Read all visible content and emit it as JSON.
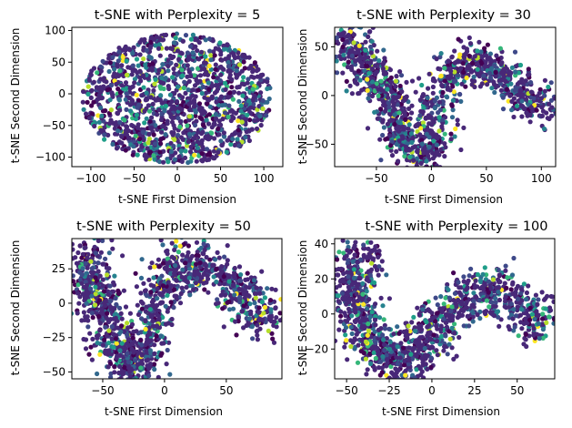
{
  "palette": [
    "#440154",
    "#482878",
    "#3e4989",
    "#31688e",
    "#26828e",
    "#1f9e89",
    "#35b779",
    "#6ece58",
    "#b5de2b",
    "#fde725"
  ],
  "chart_data": [
    {
      "type": "scatter",
      "title": "t-SNE with Perplexity = 5",
      "xlabel": "t-SNE First Dimension",
      "ylabel": "t-SNE Second Dimension",
      "xlim": [
        -122,
        122
      ],
      "ylim": [
        -115,
        105
      ],
      "xticks": [
        -100,
        -50,
        0,
        50,
        100
      ],
      "yticks": [
        -100,
        -50,
        0,
        50,
        100
      ],
      "point_cloud": {
        "shape": "disk",
        "x_range": [
          -110,
          110
        ],
        "y_range": [
          -110,
          95
        ],
        "count": 1400
      },
      "grid": false,
      "legend": "none"
    },
    {
      "type": "scatter",
      "title": "t-SNE with Perplexity = 30",
      "xlabel": "t-SNE First Dimension",
      "ylabel": "t-SNE Second Dimension",
      "xlim": [
        -88,
        113
      ],
      "ylim": [
        -73,
        70
      ],
      "xticks": [
        -50,
        0,
        50,
        100
      ],
      "yticks": [
        -50,
        0,
        50
      ],
      "point_cloud": {
        "shape": "curve",
        "spine": [
          [
            -77,
            60
          ],
          [
            -70,
            48
          ],
          [
            -65,
            35
          ],
          [
            -58,
            22
          ],
          [
            -45,
            12
          ],
          [
            -38,
            0
          ],
          [
            -32,
            -18
          ],
          [
            -28,
            -38
          ],
          [
            -22,
            -52
          ],
          [
            -12,
            -58
          ],
          [
            -5,
            -55
          ],
          [
            0,
            -35
          ],
          [
            5,
            -10
          ],
          [
            12,
            12
          ],
          [
            22,
            28
          ],
          [
            35,
            34
          ],
          [
            50,
            30
          ],
          [
            65,
            18
          ],
          [
            80,
            5
          ],
          [
            92,
            -8
          ],
          [
            105,
            -15
          ]
        ],
        "width": 10,
        "count": 1300
      },
      "grid": false,
      "legend": "none"
    },
    {
      "type": "scatter",
      "title": "t-SNE with Perplexity = 50",
      "xlabel": "t-SNE First Dimension",
      "ylabel": "t-SNE Second Dimension",
      "xlim": [
        -75,
        95
      ],
      "ylim": [
        -55,
        47
      ],
      "xticks": [
        -50,
        0,
        50
      ],
      "yticks": [
        -50,
        -25,
        0,
        25
      ],
      "point_cloud": {
        "shape": "curve",
        "spine": [
          [
            -60,
            38
          ],
          [
            -62,
            25
          ],
          [
            -58,
            12
          ],
          [
            -52,
            0
          ],
          [
            -48,
            -12
          ],
          [
            -42,
            -25
          ],
          [
            -35,
            -40
          ],
          [
            -28,
            -48
          ],
          [
            -20,
            -42
          ],
          [
            -15,
            -28
          ],
          [
            -10,
            -10
          ],
          [
            -4,
            10
          ],
          [
            5,
            22
          ],
          [
            15,
            28
          ],
          [
            28,
            28
          ],
          [
            42,
            22
          ],
          [
            55,
            12
          ],
          [
            65,
            5
          ],
          [
            75,
            -5
          ],
          [
            85,
            -15
          ]
        ],
        "width": 9,
        "count": 1400
      },
      "grid": false,
      "legend": "none"
    },
    {
      "type": "scatter",
      "title": "t-SNE with Perplexity = 100",
      "xlabel": "t-SNE First Dimension",
      "ylabel": "t-SNE Second Dimension",
      "xlim": [
        -57,
        72
      ],
      "ylim": [
        -37,
        43
      ],
      "xticks": [
        -50,
        -25,
        0,
        25,
        50
      ],
      "yticks": [
        -20,
        0,
        20,
        40
      ],
      "point_cloud": {
        "shape": "curve",
        "spine": [
          [
            -37,
            35
          ],
          [
            -45,
            28
          ],
          [
            -48,
            18
          ],
          [
            -46,
            8
          ],
          [
            -42,
            -2
          ],
          [
            -38,
            -12
          ],
          [
            -32,
            -20
          ],
          [
            -24,
            -26
          ],
          [
            -15,
            -28
          ],
          [
            -8,
            -22
          ],
          [
            0,
            -12
          ],
          [
            8,
            -2
          ],
          [
            18,
            8
          ],
          [
            30,
            14
          ],
          [
            42,
            12
          ],
          [
            52,
            5
          ],
          [
            58,
            -2
          ],
          [
            64,
            -8
          ]
        ],
        "width": 7,
        "count": 1300
      },
      "grid": false,
      "legend": "none"
    }
  ]
}
